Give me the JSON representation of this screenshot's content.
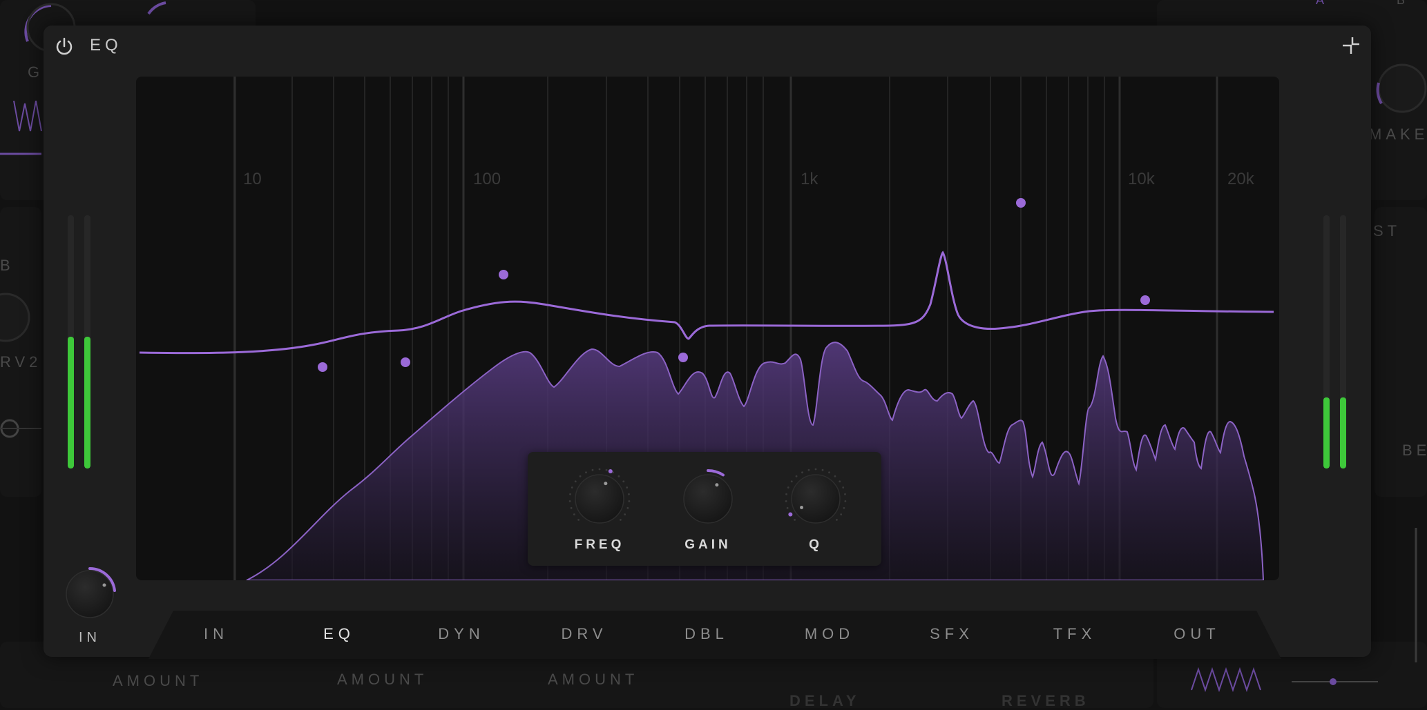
{
  "colors": {
    "accent": "#9b6ad8",
    "meter_green": "#3ec83a",
    "window_bg": "#1e1e1e",
    "graph_bg": "#101010"
  },
  "background": {
    "labels": {
      "gain_partial": "GA",
      "makeup_partial": "MAKEU",
      "st_partial": "ST",
      "b_partial": "B",
      "rv2_partial": "RV2",
      "be_partial": "BE",
      "a_partial": "A",
      "b2_partial": "B",
      "amount_1": "AMOUNT",
      "amount_2": "AMOUNT",
      "amount_3": "AMOUNT",
      "delay": "DELAY",
      "reverb": "REVERB"
    }
  },
  "header": {
    "title": "EQ",
    "power_icon": "power-icon",
    "collapse_icon": "collapse-icon"
  },
  "graph": {
    "freq_labels": [
      "10",
      "100",
      "1k",
      "10k",
      "20k"
    ]
  },
  "meters": {
    "left_levels": [
      0.52,
      0.52
    ],
    "right_levels": [
      0.28,
      0.28
    ]
  },
  "input_knob": {
    "label": "IN",
    "value": 0.28
  },
  "controls": {
    "freq": {
      "label": "FREQ",
      "value": 0.58
    },
    "gain": {
      "label": "GAIN",
      "value": 0.62
    },
    "q": {
      "label": "Q",
      "value": 0.05
    }
  },
  "tabs": [
    {
      "label": "IN",
      "active": false
    },
    {
      "label": "EQ",
      "active": true
    },
    {
      "label": "DYN",
      "active": false
    },
    {
      "label": "DRV",
      "active": false
    },
    {
      "label": "DBL",
      "active": false
    },
    {
      "label": "MOD",
      "active": false
    },
    {
      "label": "SFX",
      "active": false
    },
    {
      "label": "TFX",
      "active": false
    },
    {
      "label": "OUT",
      "active": false
    }
  ]
}
